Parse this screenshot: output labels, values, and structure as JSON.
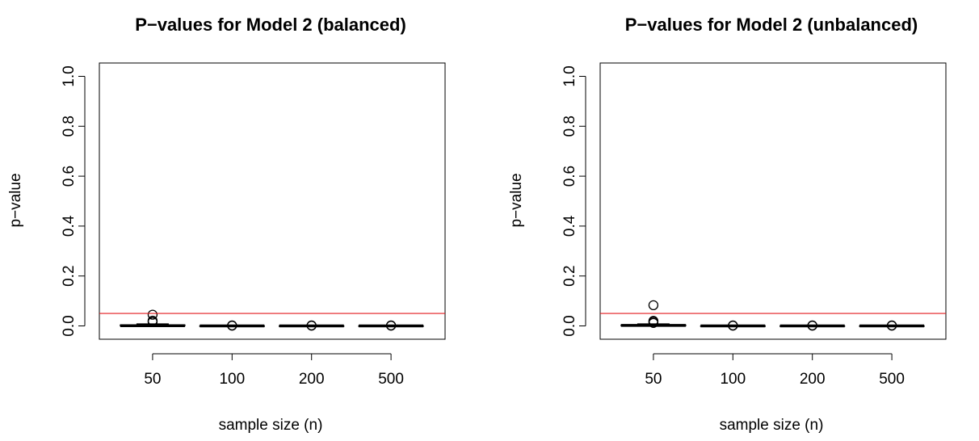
{
  "chart_data": [
    {
      "type": "box",
      "title": "P−values for Model 2 (balanced)",
      "xlabel": "sample size (n)",
      "ylabel": "p−value",
      "categories": [
        "50",
        "100",
        "200",
        "500"
      ],
      "yticks": [
        "0.0",
        "0.2",
        "0.4",
        "0.6",
        "0.8",
        "1.0"
      ],
      "ylim": [
        0,
        1
      ],
      "reference_line": {
        "y": 0.05,
        "color": "#e31a1c"
      },
      "boxes": [
        {
          "category": "50",
          "min": 0,
          "q1": 0,
          "median": 0.001,
          "q3": 0.004,
          "max": 0.008,
          "outliers": [
            0.016,
            0.021,
            0.045
          ]
        },
        {
          "category": "100",
          "min": 0,
          "q1": 0,
          "median": 0,
          "q3": 0,
          "max": 0,
          "outliers": [
            0.001,
            0.002
          ]
        },
        {
          "category": "200",
          "min": 0,
          "q1": 0,
          "median": 0,
          "q3": 0,
          "max": 0,
          "outliers": [
            0.001,
            0.002
          ]
        },
        {
          "category": "500",
          "min": 0,
          "q1": 0,
          "median": 0,
          "q3": 0,
          "max": 0,
          "outliers": [
            0.001,
            0.002
          ]
        }
      ]
    },
    {
      "type": "box",
      "title": "P−values for Model 2 (unbalanced)",
      "xlabel": "sample size (n)",
      "ylabel": "p−value",
      "categories": [
        "50",
        "100",
        "200",
        "500"
      ],
      "yticks": [
        "0.0",
        "0.2",
        "0.4",
        "0.6",
        "0.8",
        "1.0"
      ],
      "ylim": [
        0,
        1
      ],
      "reference_line": {
        "y": 0.05,
        "color": "#e31a1c"
      },
      "boxes": [
        {
          "category": "50",
          "min": 0,
          "q1": 0,
          "median": 0.002,
          "q3": 0.004,
          "max": 0.008,
          "outliers": [
            0.012,
            0.017,
            0.02,
            0.083
          ]
        },
        {
          "category": "100",
          "min": 0,
          "q1": 0,
          "median": 0,
          "q3": 0,
          "max": 0,
          "outliers": [
            0.001,
            0.002
          ]
        },
        {
          "category": "200",
          "min": 0,
          "q1": 0,
          "median": 0,
          "q3": 0,
          "max": 0,
          "outliers": [
            0.001,
            0.002
          ]
        },
        {
          "category": "500",
          "min": 0,
          "q1": 0,
          "median": 0,
          "q3": 0,
          "max": 0,
          "outliers": [
            0.001,
            0.002
          ]
        }
      ]
    }
  ]
}
